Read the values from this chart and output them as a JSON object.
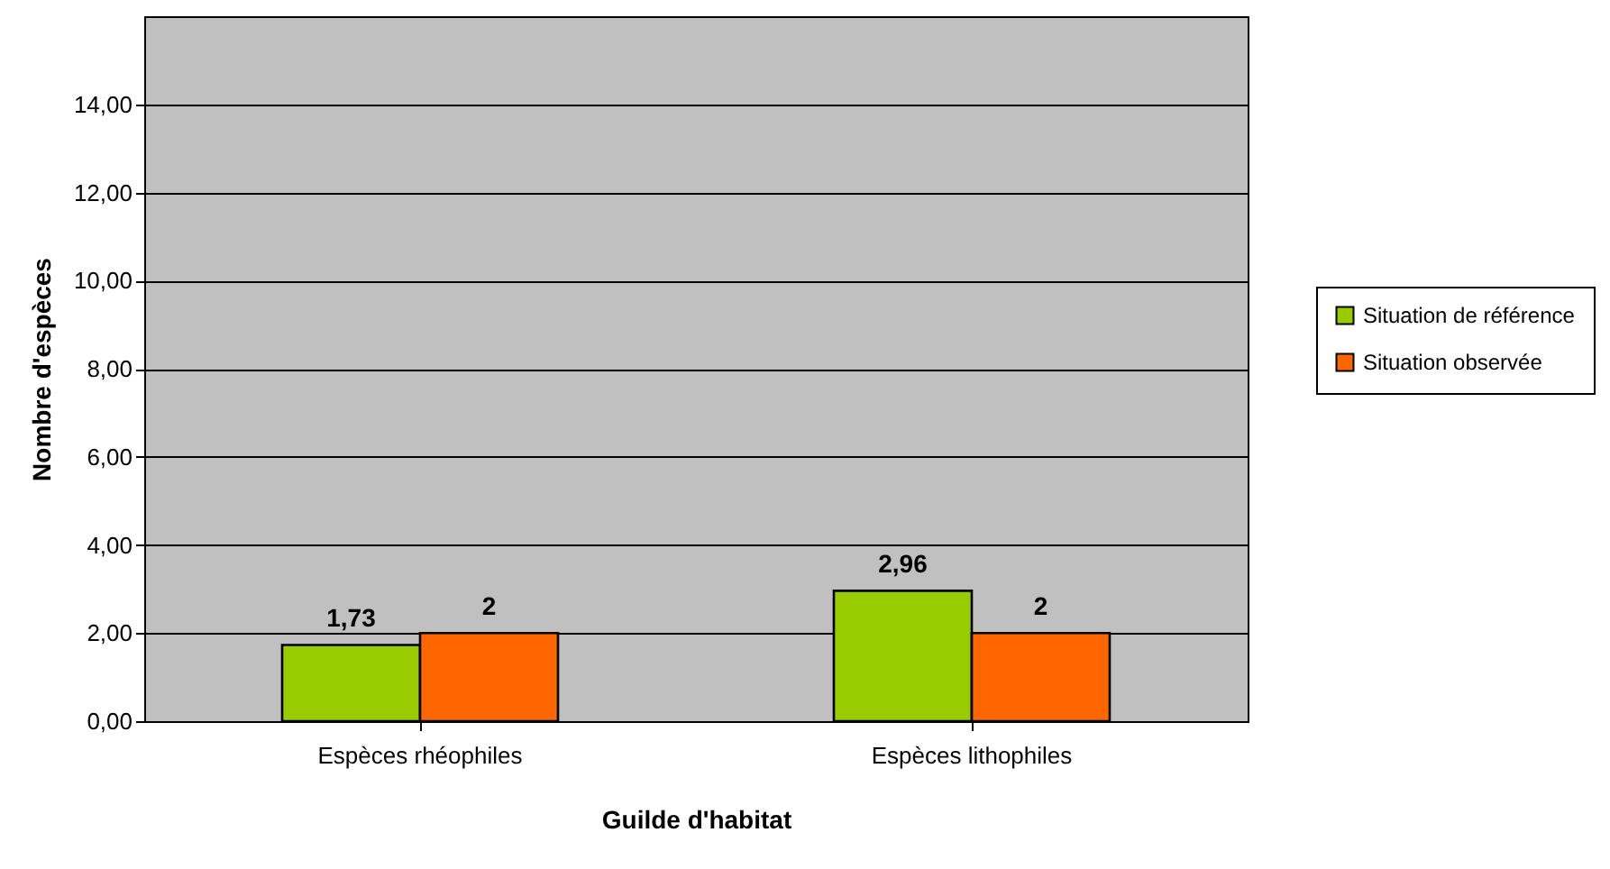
{
  "chart_data": {
    "type": "bar",
    "xlabel": "Guilde d'habitat",
    "ylabel": "Nombre d'espèces",
    "categories": [
      "Espèces rhéophiles",
      "Espèces lithophiles"
    ],
    "series": [
      {
        "name": "Situation de référence",
        "color": "#99cc00",
        "values": [
          1.73,
          2.96
        ],
        "value_labels": [
          "1,73",
          "2,96"
        ]
      },
      {
        "name": "Situation observée",
        "color": "#ff6600",
        "values": [
          2,
          2
        ],
        "value_labels": [
          "2",
          "2"
        ]
      }
    ],
    "ylim": [
      0,
      16
    ],
    "yticks": [
      {
        "value": 0,
        "label": "0,00"
      },
      {
        "value": 2,
        "label": "2,00"
      },
      {
        "value": 4,
        "label": "4,00"
      },
      {
        "value": 6,
        "label": "6,00"
      },
      {
        "value": 8,
        "label": "8,00"
      },
      {
        "value": 10,
        "label": "10,00"
      },
      {
        "value": 12,
        "label": "12,00"
      },
      {
        "value": 14,
        "label": "14,00"
      }
    ],
    "grid": "y",
    "legend": "right"
  }
}
